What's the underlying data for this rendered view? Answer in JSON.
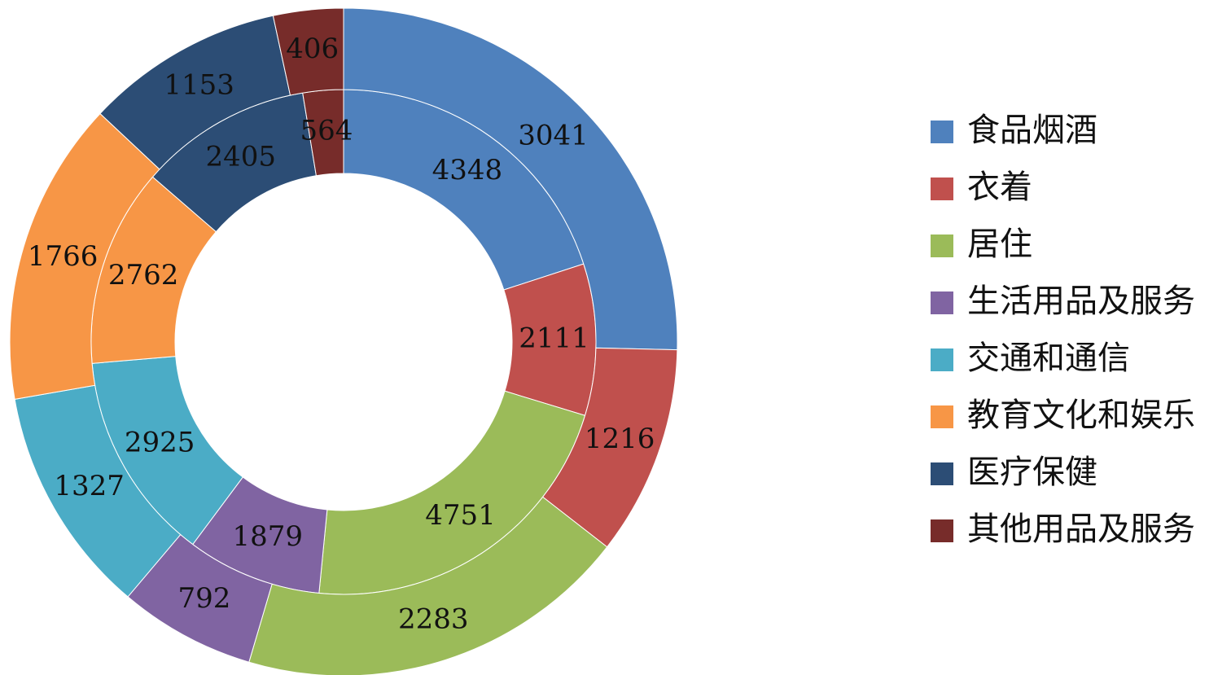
{
  "chart_data": {
    "type": "doughnut",
    "categories": [
      "食品烟酒",
      "衣着",
      "居住",
      "生活用品及服务",
      "交通和通信",
      "教育文化和娱乐",
      "医疗保健",
      "其他用品及服务"
    ],
    "colors": [
      "#4f81bd",
      "#c0504d",
      "#9bbb59",
      "#8064a2",
      "#4bacc6",
      "#f79646",
      "#2c4d75",
      "#772c2a"
    ],
    "series": [
      {
        "values": [
          4348,
          2111,
          4751,
          1879,
          2925,
          2762,
          2405,
          564
        ]
      },
      {
        "values": [
          3041,
          1216,
          2283,
          792,
          1327,
          1766,
          1153,
          406
        ]
      }
    ],
    "legend": "right"
  }
}
